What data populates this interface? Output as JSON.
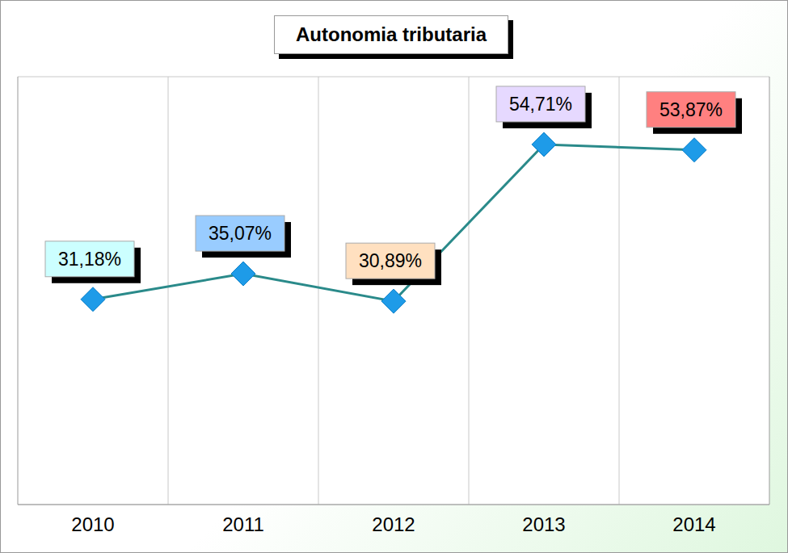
{
  "chart_data": {
    "type": "line",
    "title": "Autonomia tributaria",
    "categories": [
      "2010",
      "2011",
      "2012",
      "2013",
      "2014"
    ],
    "values": [
      31.18,
      35.07,
      30.89,
      54.71,
      53.87
    ],
    "value_labels": [
      "31,18%",
      "35,07%",
      "30,89%",
      "54,71%",
      "53,87%"
    ],
    "color": "#2a8a8a",
    "marker": "diamond",
    "ylim": [
      0,
      65
    ],
    "yticks": [
      0,
      13,
      26,
      39,
      52,
      65
    ],
    "grid": true,
    "data_labels": true,
    "tick_labels": "x"
  }
}
